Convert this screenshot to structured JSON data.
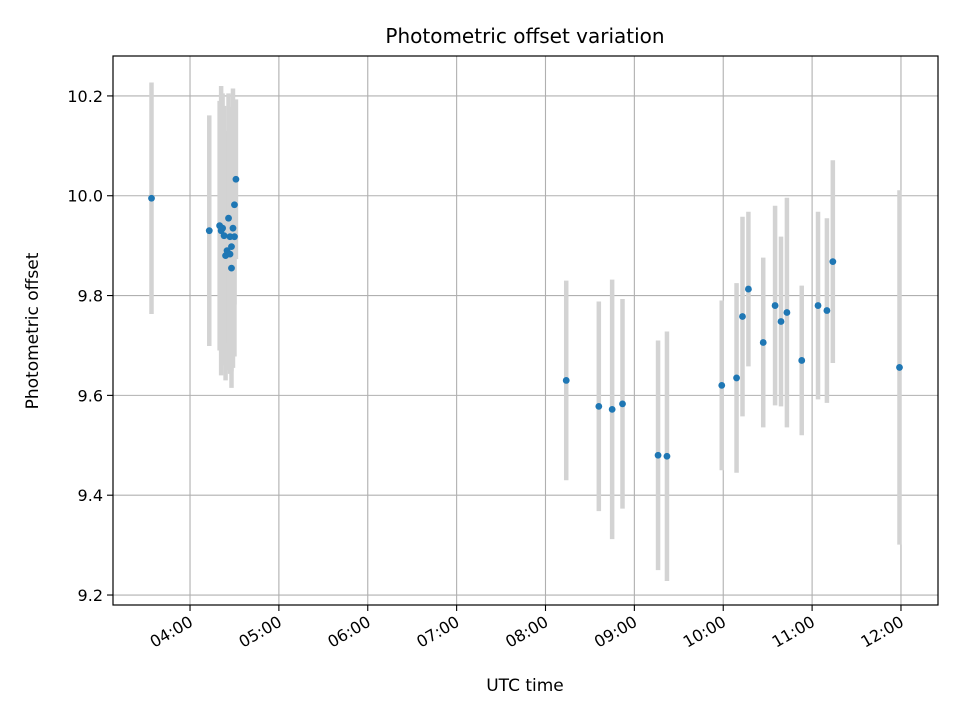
{
  "chart_data": {
    "type": "scatter",
    "title": "Photometric offset variation",
    "xlabel": "UTC time",
    "ylabel": "Photometric offset",
    "xlim": [
      "03:08",
      "12:25"
    ],
    "ylim": [
      9.18,
      10.28
    ],
    "x_ticks": [
      "04:00",
      "05:00",
      "06:00",
      "07:00",
      "08:00",
      "09:00",
      "10:00",
      "11:00",
      "12:00"
    ],
    "y_ticks": [
      "9.2",
      "9.4",
      "9.6",
      "9.8",
      "10.0",
      "10.2"
    ],
    "grid": true,
    "colors": {
      "point": "#1f77b4",
      "errorbar": "#d3d3d3",
      "grid": "#b0b0b0"
    },
    "points": [
      {
        "x": "03:34",
        "y": 9.995,
        "yerr": 0.232
      },
      {
        "x": "04:13",
        "y": 9.93,
        "yerr": 0.231
      },
      {
        "x": "04:20",
        "y": 9.94,
        "yerr": 0.25
      },
      {
        "x": "04:21",
        "y": 9.93,
        "yerr": 0.29
      },
      {
        "x": "04:22",
        "y": 9.935,
        "yerr": 0.27
      },
      {
        "x": "04:23",
        "y": 9.92,
        "yerr": 0.26
      },
      {
        "x": "04:24",
        "y": 9.88,
        "yerr": 0.25
      },
      {
        "x": "04:25",
        "y": 9.89,
        "yerr": 0.24
      },
      {
        "x": "04:26",
        "y": 9.955,
        "yerr": 0.25
      },
      {
        "x": "04:27",
        "y": 9.918,
        "yerr": 0.26
      },
      {
        "x": "04:27",
        "y": 9.883,
        "yerr": 0.24
      },
      {
        "x": "04:28",
        "y": 9.898,
        "yerr": 0.25
      },
      {
        "x": "04:28",
        "y": 9.855,
        "yerr": 0.24
      },
      {
        "x": "04:29",
        "y": 9.935,
        "yerr": 0.28
      },
      {
        "x": "04:30",
        "y": 9.918,
        "yerr": 0.24
      },
      {
        "x": "04:30",
        "y": 9.982,
        "yerr": 0.2
      },
      {
        "x": "04:31",
        "y": 10.033,
        "yerr": 0.16
      },
      {
        "x": "08:14",
        "y": 9.63,
        "yerr": 0.2
      },
      {
        "x": "08:36",
        "y": 9.578,
        "yerr": 0.21
      },
      {
        "x": "08:45",
        "y": 9.572,
        "yerr": 0.26
      },
      {
        "x": "08:52",
        "y": 9.583,
        "yerr": 0.21
      },
      {
        "x": "09:16",
        "y": 9.48,
        "yerr": 0.23
      },
      {
        "x": "09:22",
        "y": 9.478,
        "yerr": 0.25
      },
      {
        "x": "09:59",
        "y": 9.62,
        "yerr": 0.17
      },
      {
        "x": "10:09",
        "y": 9.635,
        "yerr": 0.19
      },
      {
        "x": "10:13",
        "y": 9.758,
        "yerr": 0.2
      },
      {
        "x": "10:17",
        "y": 9.813,
        "yerr": 0.155
      },
      {
        "x": "10:27",
        "y": 9.706,
        "yerr": 0.17
      },
      {
        "x": "10:35",
        "y": 9.78,
        "yerr": 0.2
      },
      {
        "x": "10:39",
        "y": 9.748,
        "yerr": 0.17
      },
      {
        "x": "10:43",
        "y": 9.766,
        "yerr": 0.23
      },
      {
        "x": "10:53",
        "y": 9.67,
        "yerr": 0.15
      },
      {
        "x": "11:04",
        "y": 9.78,
        "yerr": 0.188
      },
      {
        "x": "11:10",
        "y": 9.77,
        "yerr": 0.185
      },
      {
        "x": "11:14",
        "y": 9.868,
        "yerr": 0.203
      },
      {
        "x": "11:59",
        "y": 9.656,
        "yerr": 0.355
      }
    ]
  }
}
